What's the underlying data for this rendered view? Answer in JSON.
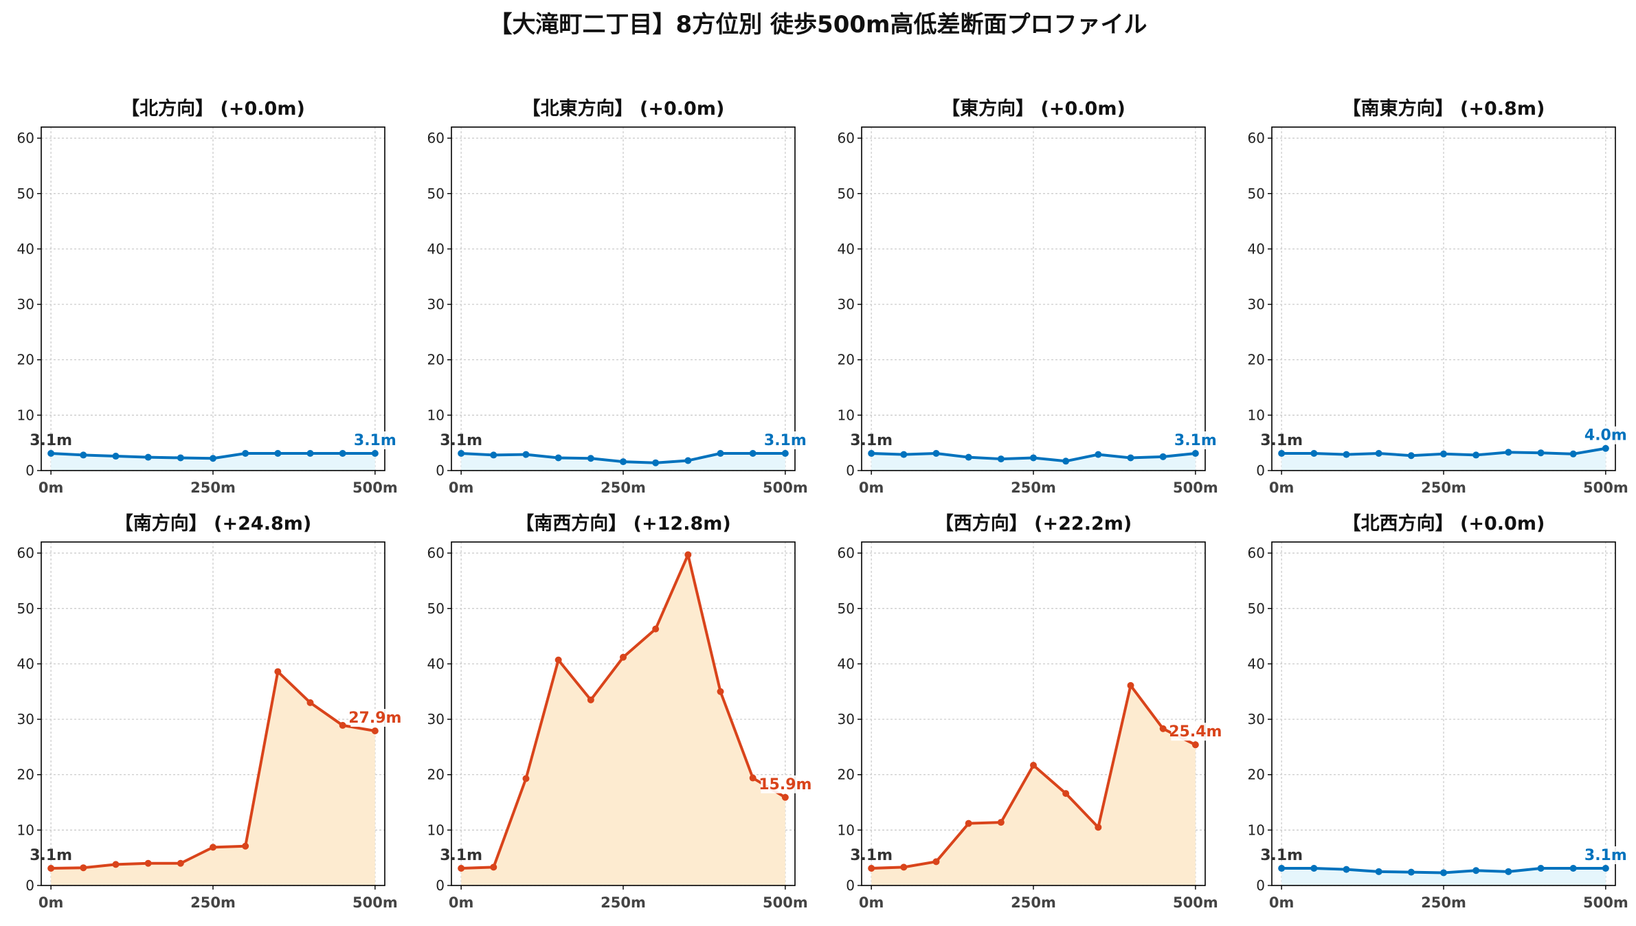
{
  "title": "【大滝町二丁目】8方位別 徒歩500m高低差断面プロファイル",
  "colors": {
    "flat_line": "#0072BD",
    "flat_fill": "#E6F6FC",
    "hill_line": "#D9441B",
    "hill_fill": "#FDEBD0",
    "start_label": "#333333"
  },
  "chart_data": [
    {
      "type": "area",
      "title": "【北方向】 (+0.0m)",
      "x": [
        0,
        50,
        100,
        150,
        200,
        250,
        300,
        350,
        400,
        450,
        500
      ],
      "xticks": [
        "0m",
        "250m",
        "500m"
      ],
      "y": [
        3.1,
        2.8,
        2.6,
        2.4,
        2.3,
        2.2,
        3.1,
        3.1,
        3.1,
        3.1,
        3.1
      ],
      "start_label": "3.1m",
      "end_label": "3.1m",
      "color": "flat",
      "xlim": [
        -15,
        515
      ],
      "ylim": [
        0,
        62
      ],
      "yticks": [
        0,
        10,
        20,
        30,
        40,
        50,
        60
      ],
      "grid": true
    },
    {
      "type": "area",
      "title": "【北東方向】 (+0.0m)",
      "x": [
        0,
        50,
        100,
        150,
        200,
        250,
        300,
        350,
        400,
        450,
        500
      ],
      "xticks": [
        "0m",
        "250m",
        "500m"
      ],
      "y": [
        3.1,
        2.8,
        2.9,
        2.3,
        2.2,
        1.6,
        1.4,
        1.8,
        3.1,
        3.1,
        3.1
      ],
      "start_label": "3.1m",
      "end_label": "3.1m",
      "color": "flat",
      "xlim": [
        -15,
        515
      ],
      "ylim": [
        0,
        62
      ],
      "yticks": [
        0,
        10,
        20,
        30,
        40,
        50,
        60
      ],
      "grid": true
    },
    {
      "type": "area",
      "title": "【東方向】 (+0.0m)",
      "x": [
        0,
        50,
        100,
        150,
        200,
        250,
        300,
        350,
        400,
        450,
        500
      ],
      "xticks": [
        "0m",
        "250m",
        "500m"
      ],
      "y": [
        3.1,
        2.9,
        3.1,
        2.4,
        2.1,
        2.3,
        1.7,
        2.9,
        2.3,
        2.5,
        3.1
      ],
      "start_label": "3.1m",
      "end_label": "3.1m",
      "color": "flat",
      "xlim": [
        -15,
        515
      ],
      "ylim": [
        0,
        62
      ],
      "yticks": [
        0,
        10,
        20,
        30,
        40,
        50,
        60
      ],
      "grid": true
    },
    {
      "type": "area",
      "title": "【南東方向】 (+0.8m)",
      "x": [
        0,
        50,
        100,
        150,
        200,
        250,
        300,
        350,
        400,
        450,
        500
      ],
      "xticks": [
        "0m",
        "250m",
        "500m"
      ],
      "y": [
        3.1,
        3.1,
        2.9,
        3.1,
        2.7,
        3.0,
        2.8,
        3.3,
        3.2,
        3.0,
        4.0
      ],
      "start_label": "3.1m",
      "end_label": "4.0m",
      "color": "flat",
      "xlim": [
        -15,
        515
      ],
      "ylim": [
        0,
        62
      ],
      "yticks": [
        0,
        10,
        20,
        30,
        40,
        50,
        60
      ],
      "grid": true
    },
    {
      "type": "area",
      "title": "【南方向】 (+24.8m)",
      "x": [
        0,
        50,
        100,
        150,
        200,
        250,
        300,
        350,
        400,
        450,
        500
      ],
      "xticks": [
        "0m",
        "250m",
        "500m"
      ],
      "y": [
        3.1,
        3.2,
        3.8,
        4.0,
        4.0,
        6.9,
        7.1,
        38.6,
        33.0,
        28.9,
        27.9
      ],
      "start_label": "3.1m",
      "end_label": "27.9m",
      "color": "hill",
      "xlim": [
        -15,
        515
      ],
      "ylim": [
        0,
        62
      ],
      "yticks": [
        0,
        10,
        20,
        30,
        40,
        50,
        60
      ],
      "grid": true
    },
    {
      "type": "area",
      "title": "【南西方向】 (+12.8m)",
      "x": [
        0,
        50,
        100,
        150,
        200,
        250,
        300,
        350,
        400,
        450,
        500
      ],
      "xticks": [
        "0m",
        "250m",
        "500m"
      ],
      "y": [
        3.1,
        3.3,
        19.3,
        40.7,
        33.5,
        41.2,
        46.3,
        59.7,
        35.0,
        19.4,
        15.9
      ],
      "start_label": "3.1m",
      "end_label": "15.9m",
      "color": "hill",
      "xlim": [
        -15,
        515
      ],
      "ylim": [
        0,
        62
      ],
      "yticks": [
        0,
        10,
        20,
        30,
        40,
        50,
        60
      ],
      "grid": true
    },
    {
      "type": "area",
      "title": "【西方向】 (+22.2m)",
      "x": [
        0,
        50,
        100,
        150,
        200,
        250,
        300,
        350,
        400,
        450,
        500
      ],
      "xticks": [
        "0m",
        "250m",
        "500m"
      ],
      "y": [
        3.1,
        3.3,
        4.3,
        11.2,
        11.4,
        21.7,
        16.6,
        10.5,
        36.1,
        28.3,
        25.4
      ],
      "start_label": "3.1m",
      "end_label": "25.4m",
      "color": "hill",
      "xlim": [
        -15,
        515
      ],
      "ylim": [
        0,
        62
      ],
      "yticks": [
        0,
        10,
        20,
        30,
        40,
        50,
        60
      ],
      "grid": true
    },
    {
      "type": "area",
      "title": "【北西方向】 (+0.0m)",
      "x": [
        0,
        50,
        100,
        150,
        200,
        250,
        300,
        350,
        400,
        450,
        500
      ],
      "xticks": [
        "0m",
        "250m",
        "500m"
      ],
      "y": [
        3.1,
        3.1,
        2.9,
        2.5,
        2.4,
        2.3,
        2.7,
        2.5,
        3.1,
        3.1,
        3.1
      ],
      "start_label": "3.1m",
      "end_label": "3.1m",
      "color": "flat",
      "xlim": [
        -15,
        515
      ],
      "ylim": [
        0,
        62
      ],
      "yticks": [
        0,
        10,
        20,
        30,
        40,
        50,
        60
      ],
      "grid": true
    }
  ]
}
